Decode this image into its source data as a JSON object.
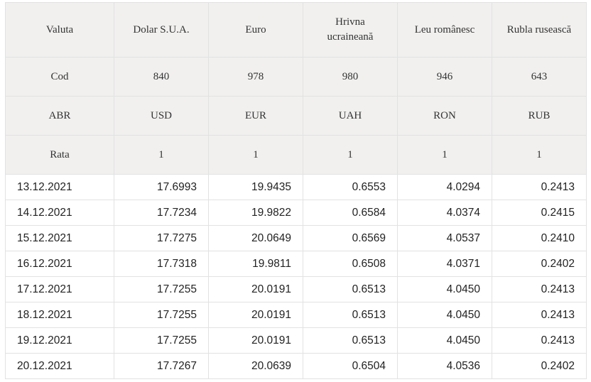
{
  "header": {
    "currency_label": "Valuta",
    "code_label": "Cod",
    "abbr_label": "ABR",
    "rate_label": "Rata",
    "currencies": [
      {
        "name": "Dolar S.U.A.",
        "code": "840",
        "abbr": "USD",
        "rate": "1"
      },
      {
        "name": "Euro",
        "code": "978",
        "abbr": "EUR",
        "rate": "1"
      },
      {
        "name": "Hrivna ucraineană",
        "code": "980",
        "abbr": "UAH",
        "rate": "1"
      },
      {
        "name": "Leu românesc",
        "code": "946",
        "abbr": "RON",
        "rate": "1"
      },
      {
        "name": "Rubla rusească",
        "code": "643",
        "abbr": "RUB",
        "rate": "1"
      }
    ]
  },
  "rows": [
    {
      "date": "13.12.2021",
      "values": [
        "17.6993",
        "19.9435",
        "0.6553",
        "4.0294",
        "0.2413"
      ]
    },
    {
      "date": "14.12.2021",
      "values": [
        "17.7234",
        "19.9822",
        "0.6584",
        "4.0374",
        "0.2415"
      ]
    },
    {
      "date": "15.12.2021",
      "values": [
        "17.7275",
        "20.0649",
        "0.6569",
        "4.0537",
        "0.2410"
      ]
    },
    {
      "date": "16.12.2021",
      "values": [
        "17.7318",
        "19.9811",
        "0.6508",
        "4.0371",
        "0.2402"
      ]
    },
    {
      "date": "17.12.2021",
      "values": [
        "17.7255",
        "20.0191",
        "0.6513",
        "4.0450",
        "0.2413"
      ]
    },
    {
      "date": "18.12.2021",
      "values": [
        "17.7255",
        "20.0191",
        "0.6513",
        "4.0450",
        "0.2413"
      ]
    },
    {
      "date": "19.12.2021",
      "values": [
        "17.7255",
        "20.0191",
        "0.6513",
        "4.0450",
        "0.2413"
      ]
    },
    {
      "date": "20.12.2021",
      "values": [
        "17.7267",
        "20.0639",
        "0.6504",
        "4.0536",
        "0.2402"
      ]
    }
  ]
}
